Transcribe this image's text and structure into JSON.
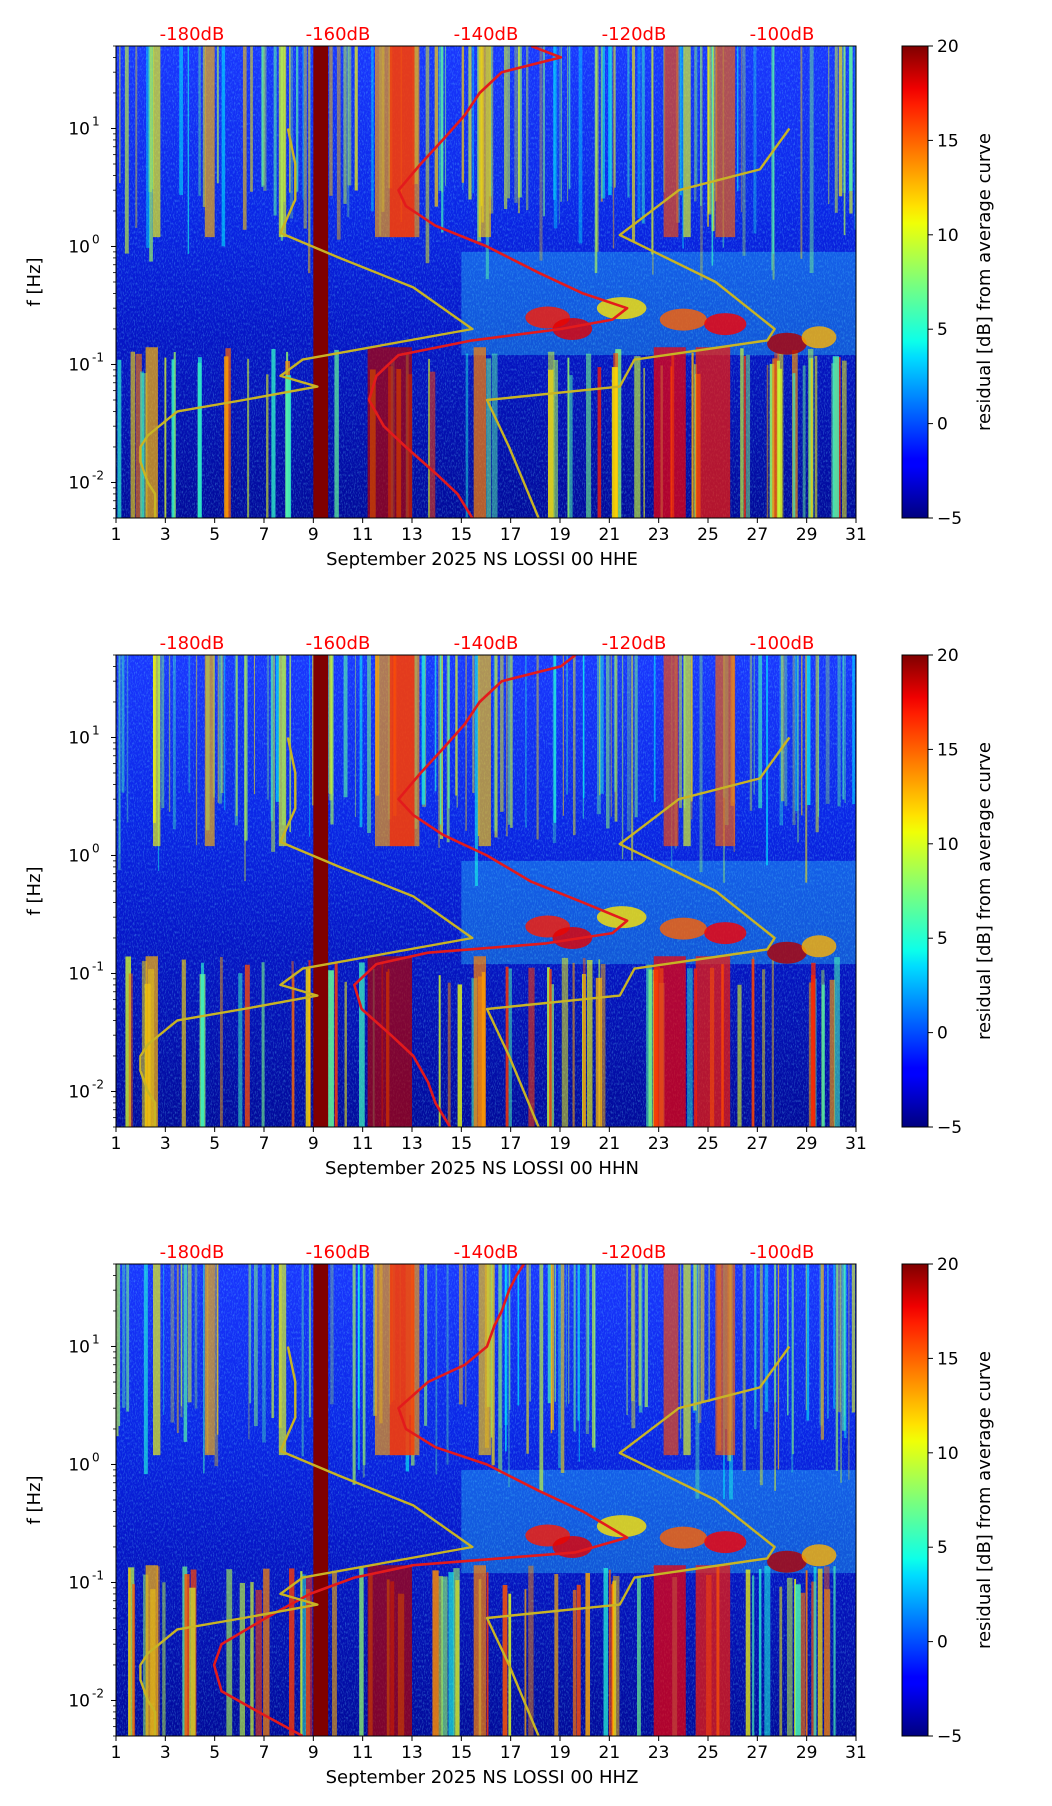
{
  "chart_data": [
    {
      "type": "heatmap",
      "xlabel": "September 2025 NS LOSSI 00 HHE",
      "ylabel": "f [Hz]",
      "x_ticks": [
        "1",
        "3",
        "5",
        "7",
        "9",
        "11",
        "13",
        "15",
        "17",
        "19",
        "21",
        "23",
        "25",
        "27",
        "29",
        "31"
      ],
      "xlim": [
        1,
        31
      ],
      "ylim_hz": [
        0.005,
        50
      ],
      "y_ticks": [
        {
          "exp": "-2",
          "value": 0.01
        },
        {
          "exp": "-1",
          "value": 0.1
        },
        {
          "exp": "0",
          "value": 1
        },
        {
          "exp": "1",
          "value": 10
        }
      ],
      "top_axis_labels": [
        "-180dB",
        "-160dB",
        "-140dB",
        "-120dB",
        "-100dB"
      ],
      "top_axis_values_db": [
        -180,
        -160,
        -140,
        -120,
        -100
      ],
      "colorbar": {
        "label": "residual [dB] from average curve",
        "ticks": [
          "20",
          "15",
          "10",
          "5",
          "0",
          "−5"
        ],
        "tick_values": [
          20,
          15,
          10,
          5,
          0,
          -5
        ],
        "range": [
          -5,
          20
        ]
      },
      "data_gap_days": [
        9.0,
        9.6
      ],
      "series": [
        {
          "name": "average PSD (red)",
          "color": "#e31a1c",
          "points": [
            [
              -134,
              50
            ],
            [
              -130,
              40
            ],
            [
              -138,
              30
            ],
            [
              -141,
              20
            ],
            [
              -143,
              13
            ],
            [
              -146,
              8
            ],
            [
              -149,
              5
            ],
            [
              -152,
              3
            ],
            [
              -151,
              2.2
            ],
            [
              -147,
              1.5
            ],
            [
              -140,
              1
            ],
            [
              -133,
              0.6
            ],
            [
              -127,
              0.4
            ],
            [
              -121,
              0.3
            ],
            [
              -123,
              0.24
            ],
            [
              -130,
              0.2
            ],
            [
              -142,
              0.16
            ],
            [
              -152,
              0.12
            ],
            [
              -155,
              0.08
            ],
            [
              -156,
              0.05
            ],
            [
              -154,
              0.03
            ],
            [
              -151,
              0.02
            ],
            [
              -147,
              0.012
            ],
            [
              -144,
              0.008
            ],
            [
              -142,
              0.005
            ]
          ]
        },
        {
          "name": "noise model (yellow, left)",
          "color": "#c8b424",
          "points": [
            [
              -167,
              10
            ],
            [
              -166,
              5
            ],
            [
              -166,
              2.5
            ],
            [
              -168,
              1.3
            ],
            [
              -160,
              0.8
            ],
            [
              -150,
              0.45
            ],
            [
              -142,
              0.2
            ],
            [
              -165,
              0.11
            ],
            [
              -168,
              0.08
            ],
            [
              -163,
              0.065
            ],
            [
              -173,
              0.05
            ],
            [
              -182,
              0.04
            ],
            [
              -186,
              0.025
            ],
            [
              -187,
              0.02
            ],
            [
              -187,
              0.015
            ],
            [
              -186,
              0.01
            ],
            [
              -185,
              0.008
            ],
            [
              -185,
              0.005
            ]
          ]
        },
        {
          "name": "noise model (yellow, right)",
          "color": "#c8b424",
          "points": [
            [
              -99,
              10
            ],
            [
              -103,
              4.5
            ],
            [
              -114,
              3
            ],
            [
              -122,
              1.25
            ],
            [
              -109,
              0.5
            ],
            [
              -101,
              0.2
            ],
            [
              -102,
              0.16
            ],
            [
              -120,
              0.11
            ],
            [
              -122,
              0.065
            ],
            [
              -140,
              0.05
            ],
            [
              -137,
              0.02
            ],
            [
              -133,
              0.005
            ]
          ]
        }
      ]
    },
    {
      "type": "heatmap",
      "xlabel": "September 2025 NS LOSSI 00 HHN",
      "ylabel": "f [Hz]",
      "x_ticks": [
        "1",
        "3",
        "5",
        "7",
        "9",
        "11",
        "13",
        "15",
        "17",
        "19",
        "21",
        "23",
        "25",
        "27",
        "29",
        "31"
      ],
      "xlim": [
        1,
        31
      ],
      "ylim_hz": [
        0.005,
        50
      ],
      "y_ticks": [
        {
          "exp": "-2",
          "value": 0.01
        },
        {
          "exp": "-1",
          "value": 0.1
        },
        {
          "exp": "0",
          "value": 1
        },
        {
          "exp": "1",
          "value": 10
        }
      ],
      "top_axis_labels": [
        "-180dB",
        "-160dB",
        "-140dB",
        "-120dB",
        "-100dB"
      ],
      "top_axis_values_db": [
        -180,
        -160,
        -140,
        -120,
        -100
      ],
      "colorbar": {
        "label": "residual [dB] from average curve",
        "ticks": [
          "20",
          "15",
          "10",
          "5",
          "0",
          "−5"
        ],
        "tick_values": [
          20,
          15,
          10,
          5,
          0,
          -5
        ],
        "range": [
          -5,
          20
        ]
      },
      "data_gap_days": [
        9.0,
        9.6
      ],
      "series": [
        {
          "name": "average PSD (red)",
          "color": "#e31a1c",
          "points": [
            [
              -128,
              50
            ],
            [
              -130,
              40
            ],
            [
              -138,
              30
            ],
            [
              -141,
              20
            ],
            [
              -143,
              13
            ],
            [
              -146,
              8
            ],
            [
              -149,
              5
            ],
            [
              -152,
              3
            ],
            [
              -150,
              2.2
            ],
            [
              -146,
              1.5
            ],
            [
              -140,
              1
            ],
            [
              -134,
              0.6
            ],
            [
              -127,
              0.4
            ],
            [
              -121,
              0.28
            ],
            [
              -123,
              0.22
            ],
            [
              -132,
              0.18
            ],
            [
              -148,
              0.15
            ],
            [
              -155,
              0.12
            ],
            [
              -158,
              0.08
            ],
            [
              -157,
              0.05
            ],
            [
              -153,
              0.03
            ],
            [
              -150,
              0.02
            ],
            [
              -148,
              0.012
            ],
            [
              -147,
              0.008
            ],
            [
              -145,
              0.005
            ]
          ]
        },
        {
          "name": "noise model (yellow, left)",
          "color": "#c8b424",
          "points": [
            [
              -167,
              10
            ],
            [
              -166,
              5
            ],
            [
              -166,
              2.5
            ],
            [
              -168,
              1.3
            ],
            [
              -160,
              0.8
            ],
            [
              -150,
              0.45
            ],
            [
              -142,
              0.2
            ],
            [
              -165,
              0.11
            ],
            [
              -168,
              0.08
            ],
            [
              -163,
              0.065
            ],
            [
              -173,
              0.05
            ],
            [
              -182,
              0.04
            ],
            [
              -186,
              0.025
            ],
            [
              -187,
              0.02
            ],
            [
              -187,
              0.015
            ],
            [
              -186,
              0.01
            ],
            [
              -185,
              0.008
            ],
            [
              -185,
              0.005
            ]
          ]
        },
        {
          "name": "noise model (yellow, right)",
          "color": "#c8b424",
          "points": [
            [
              -99,
              10
            ],
            [
              -103,
              4.5
            ],
            [
              -114,
              3
            ],
            [
              -122,
              1.25
            ],
            [
              -109,
              0.5
            ],
            [
              -101,
              0.2
            ],
            [
              -102,
              0.16
            ],
            [
              -120,
              0.11
            ],
            [
              -122,
              0.065
            ],
            [
              -140,
              0.05
            ],
            [
              -137,
              0.02
            ],
            [
              -133,
              0.005
            ]
          ]
        }
      ]
    },
    {
      "type": "heatmap",
      "xlabel": "September 2025 NS LOSSI 00 HHZ",
      "ylabel": "f [Hz]",
      "x_ticks": [
        "1",
        "3",
        "5",
        "7",
        "9",
        "11",
        "13",
        "15",
        "17",
        "19",
        "21",
        "23",
        "25",
        "27",
        "29",
        "31"
      ],
      "xlim": [
        1,
        31
      ],
      "ylim_hz": [
        0.005,
        50
      ],
      "y_ticks": [
        {
          "exp": "-2",
          "value": 0.01
        },
        {
          "exp": "-1",
          "value": 0.1
        },
        {
          "exp": "0",
          "value": 1
        },
        {
          "exp": "1",
          "value": 10
        }
      ],
      "top_axis_labels": [
        "-180dB",
        "-160dB",
        "-140dB",
        "-120dB",
        "-100dB"
      ],
      "top_axis_values_db": [
        -180,
        -160,
        -140,
        -120,
        -100
      ],
      "colorbar": {
        "label": "residual [dB] from average curve",
        "ticks": [
          "20",
          "15",
          "10",
          "5",
          "0",
          "−5"
        ],
        "tick_values": [
          20,
          15,
          10,
          5,
          0,
          -5
        ],
        "range": [
          -5,
          20
        ]
      },
      "data_gap_days": [
        9.0,
        9.6
      ],
      "series": [
        {
          "name": "average PSD (red)",
          "color": "#e31a1c",
          "points": [
            [
              -135,
              50
            ],
            [
              -136,
              40
            ],
            [
              -137,
              30
            ],
            [
              -138,
              20
            ],
            [
              -139,
              15
            ],
            [
              -140,
              10
            ],
            [
              -143,
              7
            ],
            [
              -148,
              5
            ],
            [
              -152,
              3
            ],
            [
              -151,
              2
            ],
            [
              -147,
              1.4
            ],
            [
              -140,
              1
            ],
            [
              -133,
              0.6
            ],
            [
              -127,
              0.4
            ],
            [
              -121,
              0.24
            ],
            [
              -128,
              0.18
            ],
            [
              -150,
              0.14
            ],
            [
              -158,
              0.11
            ],
            [
              -164,
              0.08
            ],
            [
              -170,
              0.05
            ],
            [
              -176,
              0.03
            ],
            [
              -177,
              0.02
            ],
            [
              -176,
              0.012
            ],
            [
              -171,
              0.008
            ],
            [
              -165,
              0.005
            ]
          ]
        },
        {
          "name": "noise model (yellow, left)",
          "color": "#c8b424",
          "points": [
            [
              -167,
              10
            ],
            [
              -166,
              5
            ],
            [
              -166,
              2.5
            ],
            [
              -168,
              1.3
            ],
            [
              -160,
              0.8
            ],
            [
              -150,
              0.45
            ],
            [
              -142,
              0.2
            ],
            [
              -165,
              0.11
            ],
            [
              -168,
              0.08
            ],
            [
              -163,
              0.065
            ],
            [
              -173,
              0.05
            ],
            [
              -182,
              0.04
            ],
            [
              -186,
              0.025
            ],
            [
              -187,
              0.02
            ],
            [
              -187,
              0.015
            ],
            [
              -186,
              0.01
            ],
            [
              -185,
              0.008
            ],
            [
              -185,
              0.005
            ]
          ]
        },
        {
          "name": "noise model (yellow, right)",
          "color": "#c8b424",
          "points": [
            [
              -99,
              10
            ],
            [
              -103,
              4.5
            ],
            [
              -114,
              3
            ],
            [
              -122,
              1.25
            ],
            [
              -109,
              0.5
            ],
            [
              -101,
              0.2
            ],
            [
              -102,
              0.16
            ],
            [
              -120,
              0.11
            ],
            [
              -122,
              0.065
            ],
            [
              -140,
              0.05
            ],
            [
              -137,
              0.02
            ],
            [
              -133,
              0.005
            ]
          ]
        }
      ]
    }
  ]
}
